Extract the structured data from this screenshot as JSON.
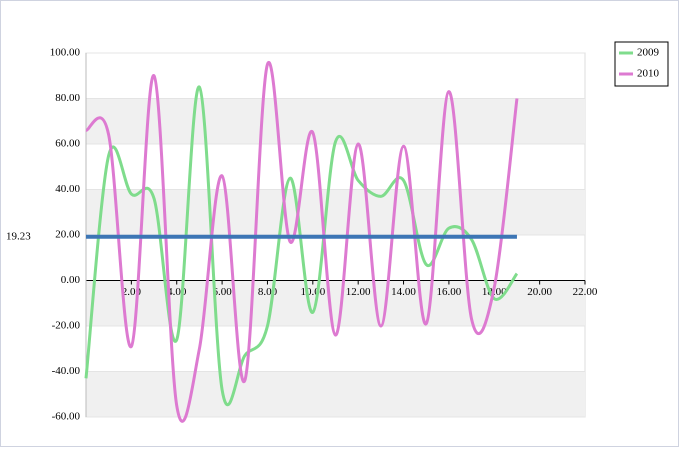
{
  "chart_data": {
    "type": "line",
    "x": [
      0,
      1,
      2,
      3,
      4,
      5,
      6,
      7,
      8,
      9,
      10,
      11,
      12,
      13,
      14,
      15,
      16,
      17,
      18,
      19
    ],
    "series": [
      {
        "name": "2009",
        "color": "#7fdc8c",
        "values": [
          -43,
          55,
          38,
          36,
          -26,
          85,
          -48,
          -33,
          -20,
          45,
          -14,
          61,
          44,
          37,
          44,
          7,
          23,
          18,
          -8,
          3
        ]
      },
      {
        "name": "2010",
        "color": "#dd7ad1",
        "values": [
          66,
          64,
          -29,
          90,
          -55,
          -30,
          46,
          -44,
          95,
          17,
          65,
          -24,
          60,
          -20,
          59,
          -19,
          83,
          -17,
          -3,
          80
        ]
      }
    ],
    "reference_line": {
      "value": 19.23,
      "color": "#3d76b5"
    },
    "xlim": [
      0,
      22
    ],
    "xticks": [
      {
        "value": 2,
        "label": "2.00"
      },
      {
        "value": 4,
        "label": "4.00"
      },
      {
        "value": 6,
        "label": "6.00"
      },
      {
        "value": 8,
        "label": "8.00"
      },
      {
        "value": 10,
        "label": "10.00"
      },
      {
        "value": 12,
        "label": "12.00"
      },
      {
        "value": 14,
        "label": "14.00"
      },
      {
        "value": 16,
        "label": "16.00"
      },
      {
        "value": 18,
        "label": "18.00"
      },
      {
        "value": 20,
        "label": "20.00"
      },
      {
        "value": 22,
        "label": "22.00"
      }
    ],
    "ylim": [
      -60,
      100
    ],
    "yticks": [
      {
        "value": -60,
        "label": "-60.00"
      },
      {
        "value": -40,
        "label": "-40.00"
      },
      {
        "value": -20,
        "label": "-20.00"
      },
      {
        "value": 0,
        "label": "0.00"
      },
      {
        "value": 20,
        "label": "20.00"
      },
      {
        "value": 40,
        "label": "40.00"
      },
      {
        "value": 60,
        "label": "60.00"
      },
      {
        "value": 80,
        "label": "80.00"
      },
      {
        "value": 100,
        "label": "100.00"
      }
    ],
    "grid": true,
    "legend": "top-right"
  }
}
